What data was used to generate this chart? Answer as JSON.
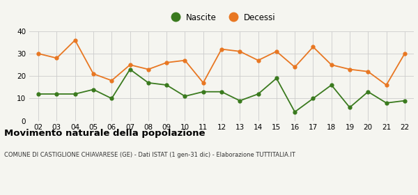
{
  "years": [
    "02",
    "03",
    "04",
    "05",
    "06",
    "07",
    "08",
    "09",
    "10",
    "11",
    "12",
    "13",
    "14",
    "15",
    "16",
    "17",
    "18",
    "19",
    "20",
    "21",
    "22"
  ],
  "nascite": [
    12,
    12,
    12,
    14,
    10,
    23,
    17,
    16,
    11,
    13,
    13,
    9,
    12,
    19,
    4,
    10,
    16,
    6,
    13,
    8,
    9
  ],
  "decessi": [
    30,
    28,
    36,
    21,
    18,
    25,
    23,
    26,
    27,
    17,
    32,
    31,
    27,
    31,
    24,
    33,
    25,
    23,
    22,
    16,
    30
  ],
  "nascite_color": "#3a7a1e",
  "decessi_color": "#e87722",
  "title": "Movimento naturale della popolazione",
  "subtitle": "COMUNE DI CASTIGLIONE CHIAVARESE (GE) - Dati ISTAT (1 gen-31 dic) - Elaborazione TUTTITALIA.IT",
  "legend_nascite": "Nascite",
  "legend_decessi": "Decessi",
  "ylim": [
    0,
    40
  ],
  "yticks": [
    0,
    10,
    20,
    30,
    40
  ],
  "background_color": "#f5f5f0",
  "grid_color": "#cccccc"
}
